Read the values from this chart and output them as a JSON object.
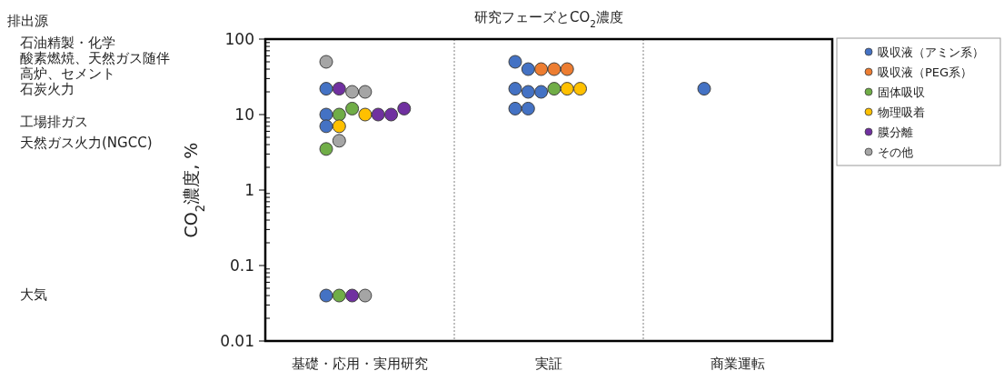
{
  "chart_data": {
    "type": "scatter",
    "title": "研究フェーズとCO$_{2}$濃度",
    "ylabel": "CO$_{2}$濃度, %",
    "categories": [
      "基礎・応用・実用研究",
      "実証",
      "商業運転"
    ],
    "ylim": [
      0.01,
      100
    ],
    "yticks": [
      0.01,
      0.1,
      1,
      10,
      100
    ],
    "log": "y",
    "grid": false,
    "legend": "top right",
    "marker": "circle",
    "annotations": [
      "排出源",
      "石油精製・化学",
      "酸素燃焼、天然ガス随伴",
      "高炉、セメント",
      "石炭火力",
      "工場排ガス",
      "天然ガス火力(NGCC)",
      "大気"
    ],
    "series": [
      {
        "name": "吸収液（アミン系）",
        "color": "#4472c4",
        "x": [
          "基礎・応用・実用研究",
          "基礎・応用・実用研究",
          "基礎・応用・実用研究",
          "基礎・応用・実用研究",
          "実証",
          "実証",
          "実証",
          "実証",
          "実証",
          "実証",
          "実証",
          "商業運転"
        ],
        "values": [
          22,
          10,
          7,
          0.04,
          50,
          40,
          22,
          20,
          20,
          12,
          12,
          22
        ]
      },
      {
        "name": "吸収液（PEG系）",
        "color": "#ed7d31",
        "x": [
          "実証",
          "実証",
          "実証"
        ],
        "values": [
          40,
          40,
          40
        ]
      },
      {
        "name": "固体吸収",
        "color": "#70ad47",
        "x": [
          "基礎・応用・実用研究",
          "基礎・応用・実用研究",
          "基礎・応用・実用研究",
          "基礎・応用・実用研究",
          "実証"
        ],
        "values": [
          10,
          12,
          3.5,
          0.04,
          22
        ]
      },
      {
        "name": "物理吸着",
        "color": "#ffc000",
        "x": [
          "基礎・応用・実用研究",
          "基礎・応用・実用研究",
          "実証",
          "実証"
        ],
        "values": [
          10,
          7,
          22,
          22
        ]
      },
      {
        "name": "膜分離",
        "color": "#7030a0",
        "x": [
          "基礎・応用・実用研究",
          "基礎・応用・実用研究",
          "基礎・応用・実用研究",
          "基礎・応用・実用研究",
          "基礎・応用・実用研究"
        ],
        "values": [
          22,
          10,
          10,
          12,
          0.04
        ]
      },
      {
        "name": "その他",
        "color": "#a5a5a5",
        "x": [
          "基礎・応用・実用研究",
          "基礎・応用・実用研究",
          "基礎・応用・実用研究",
          "基礎・応用・実用研究",
          "基礎・応用・実用研究"
        ],
        "values": [
          50,
          20,
          20,
          4.5,
          0.04
        ]
      }
    ]
  }
}
